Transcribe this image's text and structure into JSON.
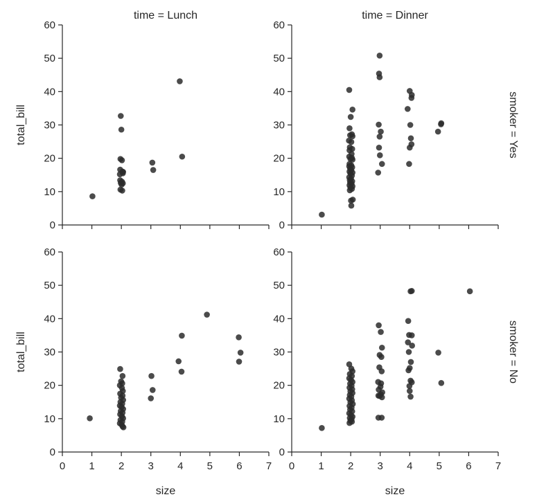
{
  "chart_data": {
    "type": "scatter",
    "grid": false,
    "x": "size",
    "y": "total_bill",
    "xlabel": "size",
    "ylabel": "total_bill",
    "xlim": [
      0,
      7
    ],
    "ylim": [
      0,
      60
    ],
    "xticks": [
      0,
      1,
      2,
      3,
      4,
      5,
      6,
      7
    ],
    "yticks": [
      0,
      10,
      20,
      30,
      40,
      50,
      60
    ],
    "column_titles": [
      "time = Lunch",
      "time = Dinner"
    ],
    "row_titles": [
      "smoker = Yes",
      "smoker = No"
    ],
    "panels": [
      {
        "title": "time = Lunch",
        "row_title": "smoker = Yes",
        "points": [
          [
            1.02,
            8.6
          ],
          [
            1.98,
            32.7
          ],
          [
            2.0,
            28.6
          ],
          [
            1.97,
            19.8
          ],
          [
            2.02,
            19.4
          ],
          [
            1.96,
            16.6
          ],
          [
            2.04,
            16.0
          ],
          [
            2.06,
            15.9
          ],
          [
            1.95,
            15.2
          ],
          [
            2.05,
            15.5
          ],
          [
            1.96,
            13.4
          ],
          [
            2.02,
            13.0
          ],
          [
            1.98,
            12.6
          ],
          [
            2.05,
            12.5
          ],
          [
            2.01,
            12.1
          ],
          [
            1.97,
            10.6
          ],
          [
            2.03,
            10.3
          ],
          [
            3.05,
            18.7
          ],
          [
            3.08,
            16.5
          ],
          [
            3.98,
            43.1
          ],
          [
            4.06,
            20.5
          ]
        ]
      },
      {
        "title": "time = Dinner",
        "row_title": "",
        "points": [
          [
            1.02,
            3.1
          ],
          [
            1.95,
            40.5
          ],
          [
            2.06,
            34.6
          ],
          [
            2.0,
            32.4
          ],
          [
            1.96,
            29.0
          ],
          [
            2.04,
            27.2
          ],
          [
            1.98,
            26.9
          ],
          [
            2.06,
            26.6
          ],
          [
            1.94,
            25.3
          ],
          [
            2.02,
            24.9
          ],
          [
            1.97,
            23.3
          ],
          [
            2.05,
            22.8
          ],
          [
            1.96,
            22.4
          ],
          [
            2.03,
            21.3
          ],
          [
            1.95,
            20.5
          ],
          [
            2.04,
            20.1
          ],
          [
            1.99,
            19.8
          ],
          [
            2.06,
            19.6
          ],
          [
            1.96,
            18.3
          ],
          [
            2.02,
            17.9
          ],
          [
            1.95,
            17.6
          ],
          [
            2.05,
            17.3
          ],
          [
            1.98,
            16.9
          ],
          [
            2.02,
            16.4
          ],
          [
            1.96,
            16.0
          ],
          [
            2.06,
            15.7
          ],
          [
            1.99,
            15.4
          ],
          [
            2.04,
            14.8
          ],
          [
            1.95,
            14.3
          ],
          [
            2.01,
            13.9
          ],
          [
            1.97,
            13.4
          ],
          [
            2.05,
            13.1
          ],
          [
            1.98,
            12.7
          ],
          [
            2.03,
            12.4
          ],
          [
            1.96,
            11.9
          ],
          [
            2.06,
            11.6
          ],
          [
            1.99,
            11.2
          ],
          [
            2.04,
            10.8
          ],
          [
            1.97,
            10.4
          ],
          [
            2.07,
            7.6
          ],
          [
            2.01,
            7.3
          ],
          [
            2.02,
            5.8
          ],
          [
            2.98,
            50.8
          ],
          [
            2.96,
            45.4
          ],
          [
            2.98,
            44.3
          ],
          [
            2.95,
            30.1
          ],
          [
            3.02,
            28.0
          ],
          [
            2.98,
            26.5
          ],
          [
            2.96,
            23.2
          ],
          [
            2.99,
            20.9
          ],
          [
            3.06,
            18.3
          ],
          [
            2.93,
            15.7
          ],
          [
            4.0,
            40.2
          ],
          [
            4.07,
            39.0
          ],
          [
            4.06,
            38.1
          ],
          [
            3.93,
            34.8
          ],
          [
            4.02,
            30.0
          ],
          [
            4.04,
            26.0
          ],
          [
            4.06,
            24.2
          ],
          [
            4.0,
            23.2
          ],
          [
            3.98,
            18.3
          ],
          [
            4.96,
            28.0
          ],
          [
            5.07,
            30.5
          ],
          [
            5.06,
            30.2
          ]
        ]
      },
      {
        "title": "",
        "row_title": "smoker = No",
        "points": [
          [
            0.93,
            10.1
          ],
          [
            1.96,
            24.9
          ],
          [
            2.04,
            22.8
          ],
          [
            1.99,
            21.2
          ],
          [
            2.03,
            20.6
          ],
          [
            1.95,
            20.0
          ],
          [
            2.02,
            19.2
          ],
          [
            2.05,
            18.3
          ],
          [
            1.96,
            17.5
          ],
          [
            2.04,
            16.9
          ],
          [
            1.99,
            16.3
          ],
          [
            2.06,
            15.6
          ],
          [
            1.97,
            15.0
          ],
          [
            2.03,
            14.5
          ],
          [
            1.95,
            13.9
          ],
          [
            2.01,
            13.5
          ],
          [
            2.06,
            12.9
          ],
          [
            1.98,
            12.3
          ],
          [
            2.04,
            11.8
          ],
          [
            1.96,
            11.3
          ],
          [
            2.02,
            10.7
          ],
          [
            2.06,
            10.1
          ],
          [
            1.97,
            9.6
          ],
          [
            2.03,
            9.1
          ],
          [
            1.95,
            8.6
          ],
          [
            2.01,
            8.2
          ],
          [
            2.04,
            7.7
          ],
          [
            2.07,
            7.4
          ],
          [
            3.02,
            22.8
          ],
          [
            3.06,
            18.6
          ],
          [
            3.0,
            16.1
          ],
          [
            3.94,
            27.2
          ],
          [
            4.05,
            34.9
          ],
          [
            4.04,
            24.1
          ],
          [
            4.9,
            41.2
          ],
          [
            5.98,
            34.4
          ],
          [
            6.04,
            29.8
          ],
          [
            5.99,
            27.1
          ]
        ]
      },
      {
        "title": "",
        "row_title": "",
        "points": [
          [
            1.02,
            7.2
          ],
          [
            1.95,
            26.3
          ],
          [
            2.02,
            25.0
          ],
          [
            2.06,
            24.2
          ],
          [
            1.97,
            23.4
          ],
          [
            2.04,
            22.8
          ],
          [
            1.95,
            22.1
          ],
          [
            2.01,
            21.6
          ],
          [
            2.06,
            21.0
          ],
          [
            1.98,
            20.5
          ],
          [
            2.03,
            19.9
          ],
          [
            1.96,
            19.3
          ],
          [
            2.05,
            18.8
          ],
          [
            1.99,
            18.2
          ],
          [
            2.06,
            17.7
          ],
          [
            1.97,
            17.1
          ],
          [
            2.02,
            16.6
          ],
          [
            1.95,
            16.0
          ],
          [
            2.04,
            15.5
          ],
          [
            1.99,
            14.9
          ],
          [
            2.07,
            14.4
          ],
          [
            1.96,
            13.8
          ],
          [
            2.03,
            13.3
          ],
          [
            1.98,
            12.7
          ],
          [
            2.05,
            12.2
          ],
          [
            1.95,
            11.6
          ],
          [
            2.01,
            11.1
          ],
          [
            2.06,
            10.6
          ],
          [
            1.97,
            10.2
          ],
          [
            2.03,
            9.9
          ],
          [
            1.99,
            9.4
          ],
          [
            2.04,
            9.1
          ],
          [
            1.96,
            8.7
          ],
          [
            2.95,
            38.0
          ],
          [
            3.02,
            36.0
          ],
          [
            3.06,
            31.3
          ],
          [
            2.98,
            29.1
          ],
          [
            3.04,
            28.5
          ],
          [
            2.97,
            25.4
          ],
          [
            3.05,
            24.2
          ],
          [
            2.93,
            21.0
          ],
          [
            3.03,
            20.6
          ],
          [
            3.01,
            19.6
          ],
          [
            2.95,
            18.7
          ],
          [
            3.07,
            17.9
          ],
          [
            3.02,
            17.3
          ],
          [
            2.98,
            16.8
          ],
          [
            3.06,
            16.4
          ],
          [
            2.94,
            16.9
          ],
          [
            2.94,
            10.3
          ],
          [
            3.05,
            10.3
          ],
          [
            4.07,
            48.3
          ],
          [
            4.03,
            48.2
          ],
          [
            3.95,
            39.3
          ],
          [
            3.98,
            35.1
          ],
          [
            4.07,
            35.0
          ],
          [
            3.94,
            32.9
          ],
          [
            4.08,
            31.9
          ],
          [
            3.97,
            30.0
          ],
          [
            4.04,
            27.0
          ],
          [
            4.0,
            25.2
          ],
          [
            3.96,
            24.5
          ],
          [
            4.03,
            21.4
          ],
          [
            4.07,
            20.9
          ],
          [
            3.99,
            19.8
          ],
          [
            4.0,
            18.3
          ],
          [
            4.03,
            16.6
          ],
          [
            4.97,
            29.8
          ],
          [
            5.07,
            20.7
          ],
          [
            6.04,
            48.2
          ]
        ]
      }
    ]
  }
}
